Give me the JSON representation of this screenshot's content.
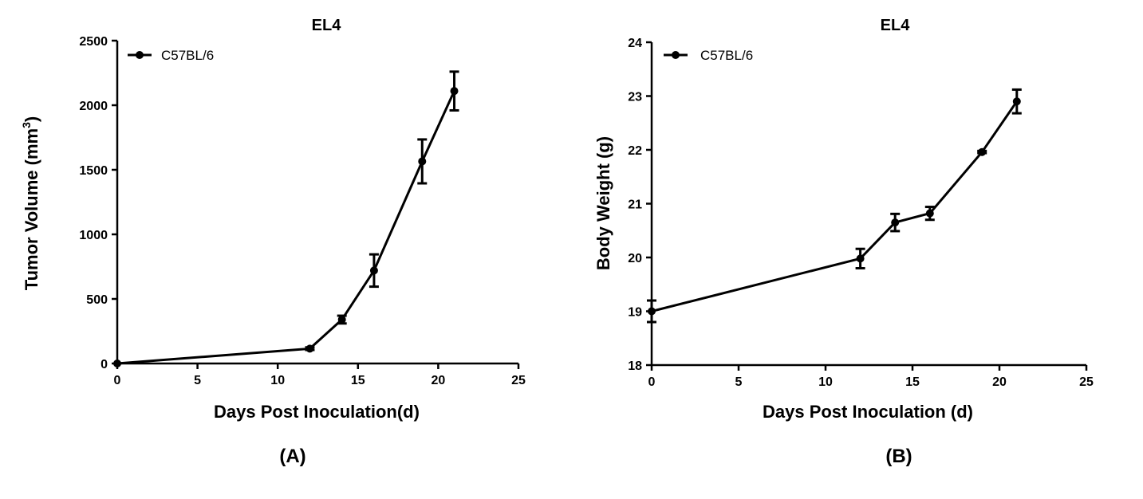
{
  "chart_data": [
    {
      "type": "line",
      "panel_label": "(A)",
      "title": "EL4",
      "xlabel": "Days Post Inoculation(d)",
      "ylabel": "Tumor Volume (mm",
      "ylabel_superscript": "3",
      "ylabel_suffix": ")",
      "xlim": [
        0,
        25
      ],
      "ylim": [
        0,
        2500
      ],
      "xticks": [
        0,
        5,
        10,
        15,
        20,
        25
      ],
      "yticks": [
        0,
        500,
        1000,
        1500,
        2000,
        2500
      ],
      "grid": false,
      "legend_position": "top-left",
      "series": [
        {
          "name": "C57BL/6",
          "color": "#000000",
          "x": [
            0,
            12,
            14,
            16,
            19,
            21
          ],
          "y": [
            0,
            115,
            340,
            720,
            1565,
            2110
          ],
          "err": [
            0,
            10,
            30,
            125,
            170,
            150
          ]
        }
      ]
    },
    {
      "type": "line",
      "panel_label": "(B)",
      "title": "EL4",
      "xlabel": "Days Post Inoculation (d)",
      "ylabel": "Body Weight (g)",
      "xlim": [
        0,
        25
      ],
      "ylim": [
        18,
        24
      ],
      "xticks": [
        0,
        5,
        10,
        15,
        20,
        25
      ],
      "yticks": [
        18,
        19,
        20,
        21,
        22,
        23,
        24
      ],
      "grid": false,
      "legend_position": "top-left",
      "series": [
        {
          "name": "C57BL/6",
          "color": "#000000",
          "x": [
            0,
            12,
            14,
            16,
            19,
            21
          ],
          "y": [
            19.0,
            19.98,
            20.65,
            20.82,
            21.96,
            22.9
          ],
          "err": [
            0.2,
            0.18,
            0.16,
            0.12,
            0.02,
            0.22
          ]
        }
      ]
    }
  ]
}
